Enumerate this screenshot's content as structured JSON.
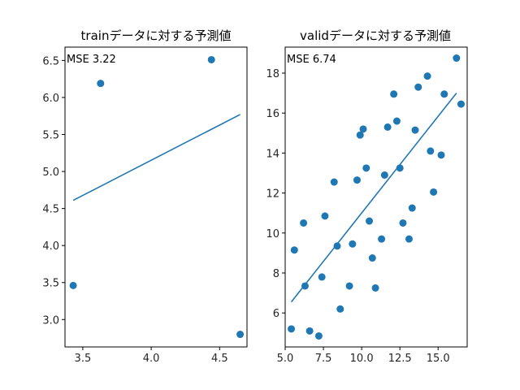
{
  "chart_data": [
    {
      "type": "scatter",
      "title": "trainデータに対する予測値",
      "annotation": "MSE 3.22",
      "xlim": [
        3.37,
        4.7
      ],
      "ylim": [
        2.63,
        6.68
      ],
      "xticks": [
        3.5,
        4.0,
        4.5
      ],
      "xtick_labels": [
        "3.5",
        "4.0",
        "4.5"
      ],
      "yticks": [
        3.0,
        3.5,
        4.0,
        4.5,
        5.0,
        5.5,
        6.0,
        6.5
      ],
      "ytick_labels": [
        "3.0",
        "3.5",
        "4.0",
        "4.5",
        "5.0",
        "5.5",
        "6.0",
        "6.5"
      ],
      "series": [
        {
          "kind": "scatter",
          "color": "#1f77b4",
          "points": [
            [
              3.43,
              3.46
            ],
            [
              3.63,
              6.19
            ],
            [
              4.44,
              6.51
            ],
            [
              4.65,
              2.8
            ]
          ]
        },
        {
          "kind": "line",
          "color": "#1f77b4",
          "points": [
            [
              3.43,
              4.61
            ],
            [
              4.65,
              5.77
            ]
          ]
        }
      ]
    },
    {
      "type": "scatter",
      "title": "validデータに対する予測値",
      "annotation": "MSE 6.74",
      "xlim": [
        5.0,
        16.9
      ],
      "ylim": [
        4.3,
        19.3
      ],
      "xticks": [
        5.0,
        7.5,
        10.0,
        12.5,
        15.0
      ],
      "xtick_labels": [
        "5.0",
        "7.5",
        "10.0",
        "12.5",
        "15.0"
      ],
      "yticks": [
        6,
        8,
        10,
        12,
        14,
        16,
        18
      ],
      "ytick_labels": [
        "6",
        "8",
        "10",
        "12",
        "14",
        "16",
        "18"
      ],
      "series": [
        {
          "kind": "scatter",
          "color": "#1f77b4",
          "points": [
            [
              5.4,
              5.2
            ],
            [
              5.6,
              9.15
            ],
            [
              6.2,
              10.5
            ],
            [
              6.3,
              7.35
            ],
            [
              6.6,
              5.1
            ],
            [
              7.2,
              4.85
            ],
            [
              7.4,
              7.8
            ],
            [
              7.6,
              10.85
            ],
            [
              8.2,
              12.55
            ],
            [
              8.4,
              9.35
            ],
            [
              8.6,
              6.2
            ],
            [
              9.2,
              7.35
            ],
            [
              9.4,
              9.45
            ],
            [
              9.7,
              12.65
            ],
            [
              9.9,
              14.9
            ],
            [
              10.1,
              15.2
            ],
            [
              10.3,
              13.25
            ],
            [
              10.5,
              10.6
            ],
            [
              10.7,
              8.75
            ],
            [
              10.9,
              7.25
            ],
            [
              11.3,
              9.7
            ],
            [
              11.5,
              12.9
            ],
            [
              11.7,
              15.3
            ],
            [
              12.1,
              16.95
            ],
            [
              12.3,
              15.6
            ],
            [
              12.5,
              13.25
            ],
            [
              12.7,
              10.5
            ],
            [
              13.1,
              9.7
            ],
            [
              13.3,
              11.25
            ],
            [
              13.5,
              15.15
            ],
            [
              13.7,
              17.3
            ],
            [
              14.3,
              17.85
            ],
            [
              14.5,
              14.1
            ],
            [
              14.7,
              12.05
            ],
            [
              15.2,
              13.9
            ],
            [
              15.4,
              16.95
            ],
            [
              16.2,
              18.75
            ],
            [
              16.5,
              16.45
            ]
          ]
        },
        {
          "kind": "line",
          "color": "#1f77b4",
          "points": [
            [
              5.4,
              6.55
            ],
            [
              16.2,
              17.0
            ]
          ]
        }
      ]
    }
  ]
}
